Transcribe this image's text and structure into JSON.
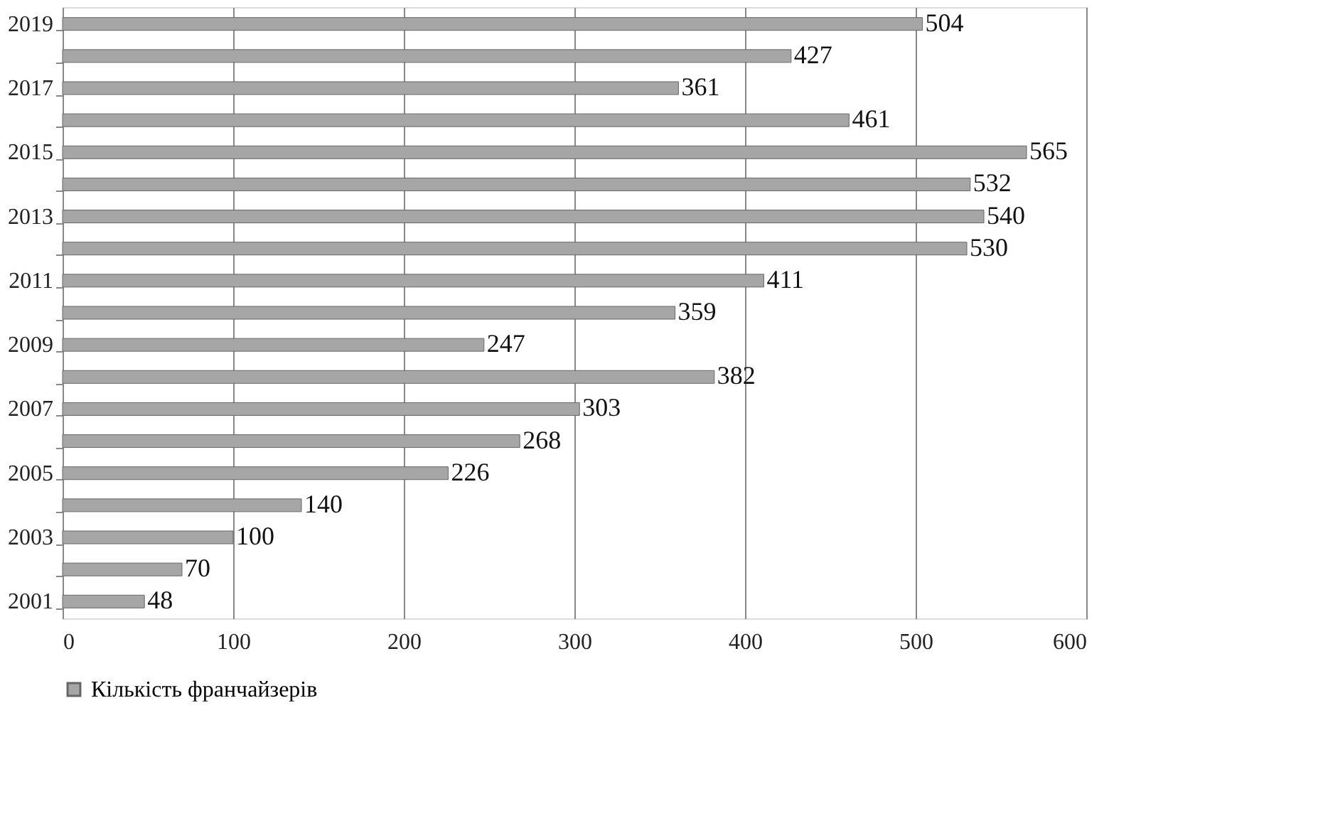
{
  "chart_data": {
    "type": "bar",
    "orientation": "horizontal",
    "categories": [
      "2019",
      null,
      "2017",
      null,
      "2015",
      null,
      "2013",
      null,
      "2011",
      null,
      "2009",
      null,
      "2007",
      null,
      "2005",
      null,
      "2003",
      null,
      "2001"
    ],
    "series": [
      {
        "name": "Кількість франчайзерів",
        "color": "#a6a6a6",
        "values": [
          504,
          427,
          361,
          461,
          565,
          532,
          540,
          530,
          411,
          359,
          247,
          382,
          303,
          268,
          226,
          140,
          100,
          70,
          48
        ]
      }
    ],
    "xlim": [
      0,
      600
    ],
    "xticks": [
      0,
      100,
      200,
      300,
      400,
      500,
      600
    ],
    "grid": "x",
    "legend": "bottom",
    "data_labels": true
  }
}
